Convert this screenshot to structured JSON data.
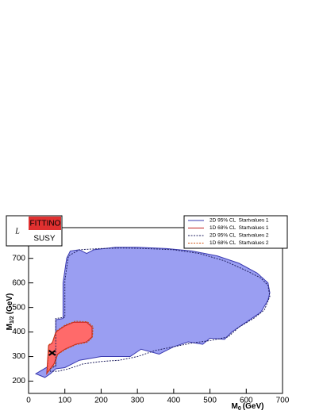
{
  "chart_data": {
    "type": "contour",
    "x_label": {
      "base": "M",
      "sub": "0",
      "unit": "(GeV)"
    },
    "y_label": {
      "base": "M",
      "sub": "1/2",
      "unit": "(GeV)"
    },
    "xlim": [
      0,
      700
    ],
    "ylim": [
      150,
      825
    ],
    "xticks": [
      0,
      100,
      200,
      300,
      400,
      500,
      600,
      700
    ],
    "yticks": [
      200,
      300,
      400,
      500,
      600,
      700
    ],
    "logo": {
      "mark": "L",
      "top": "FITTINO",
      "bottom": "SUSY"
    },
    "best_fit": {
      "x": 65,
      "y": 315
    },
    "series": [
      {
        "name": "2D 95% CL  Startvalues 1",
        "color": "#3a3ab0",
        "fill": "#9a9ef2",
        "dash": false,
        "x": [
          20,
          60,
          75,
          75,
          95,
          95,
          105,
          115,
          140,
          160,
          180,
          240,
          300,
          380,
          450,
          520,
          580,
          630,
          660,
          665,
          660,
          640,
          600,
          560,
          540,
          500,
          480,
          440,
          400,
          360,
          310,
          280,
          200,
          140,
          100,
          75,
          60,
          45
        ],
        "y": [
          230,
          265,
          262,
          450,
          455,
          600,
          700,
          730,
          735,
          720,
          735,
          745,
          745,
          740,
          730,
          710,
          680,
          640,
          600,
          560,
          530,
          480,
          440,
          400,
          370,
          375,
          350,
          360,
          340,
          310,
          330,
          300,
          300,
          285,
          255,
          250,
          230,
          215
        ]
      },
      {
        "name": "1D 68% CL  Startvalues 1",
        "color": "#c02020",
        "fill": "#ff6a6a",
        "dash": false,
        "x": [
          50,
          55,
          65,
          75,
          100,
          125,
          160,
          175,
          175,
          160,
          130,
          100,
          80,
          70
        ],
        "y": [
          230,
          345,
          355,
          400,
          425,
          440,
          440,
          420,
          380,
          360,
          350,
          330,
          310,
          270
        ]
      },
      {
        "name": "2D 95% CL  Startvalues 2",
        "color": "#202060",
        "fill": null,
        "dash": true,
        "x": [
          60,
          75,
          75,
          100,
          100,
          110,
          140,
          200,
          260,
          320,
          400,
          470,
          540,
          600,
          640,
          660,
          665,
          650,
          620,
          580,
          550,
          500,
          450,
          400,
          350,
          300,
          250,
          200,
          150,
          110,
          80,
          60
        ],
        "y": [
          250,
          262,
          455,
          460,
          610,
          710,
          735,
          740,
          742,
          740,
          735,
          720,
          690,
          650,
          620,
          590,
          545,
          490,
          455,
          420,
          380,
          365,
          355,
          340,
          325,
          300,
          285,
          280,
          270,
          250,
          240,
          240
        ]
      },
      {
        "name": "1D 68% CL  Startvalues 2",
        "color": "#d05010",
        "fill": null,
        "dash": true,
        "x": [
          52,
          56,
          66,
          78,
          100,
          128,
          162,
          178,
          176,
          162,
          130,
          100,
          80,
          72
        ],
        "y": [
          235,
          348,
          358,
          405,
          428,
          444,
          442,
          422,
          378,
          358,
          348,
          328,
          308,
          268
        ]
      }
    ]
  }
}
